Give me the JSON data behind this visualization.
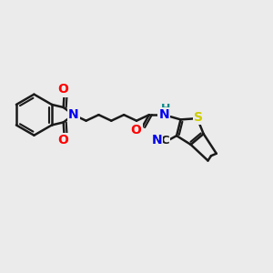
{
  "bg_color": "#ebebeb",
  "bond_color": "#1a1a1a",
  "bond_width": 1.8,
  "atom_colors": {
    "O": "#ff0000",
    "N": "#0000ee",
    "S": "#cccc00",
    "C": "#1a1a1a",
    "H": "#008888",
    "NH": "#0000ee"
  },
  "font_size": 10,
  "figsize": [
    3.0,
    3.0
  ]
}
